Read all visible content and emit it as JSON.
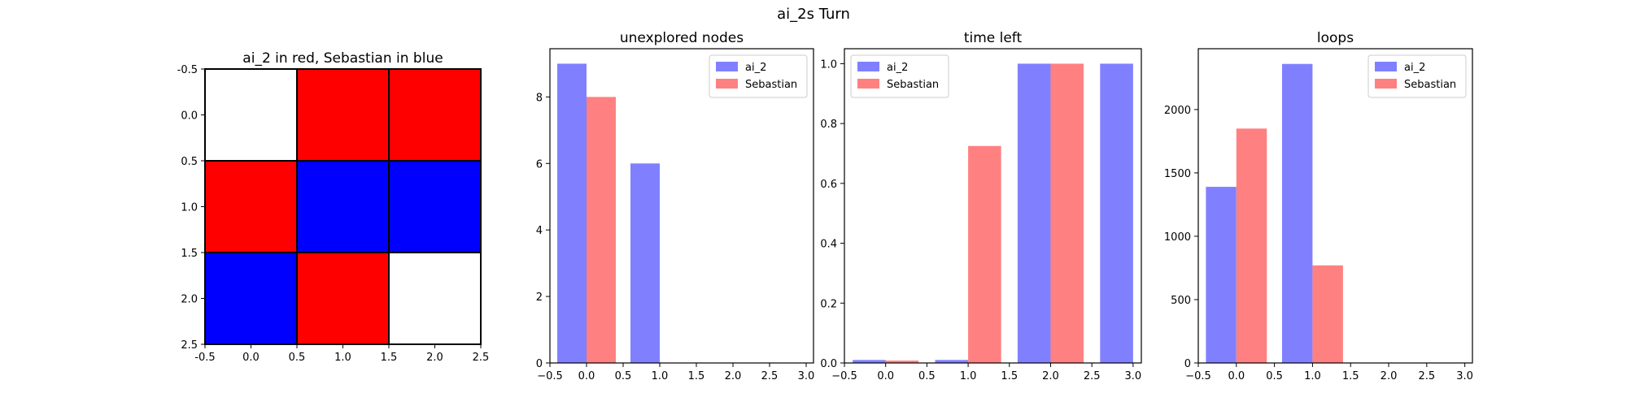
{
  "figure": {
    "suptitle": "ai_2s Turn"
  },
  "board": {
    "title": "ai_2 in red, Sebastian in blue",
    "colors": {
      "red": "#ff0000",
      "blue": "#0000ff",
      "empty": "#ffffff"
    },
    "cells": [
      [
        "empty",
        "red",
        "red"
      ],
      [
        "red",
        "blue",
        "blue"
      ],
      [
        "blue",
        "red",
        "empty"
      ]
    ],
    "x_ticks": [
      "-0.5",
      "0.0",
      "0.5",
      "1.0",
      "1.5",
      "2.0",
      "2.5"
    ],
    "y_ticks": [
      "-0.5",
      "0.0",
      "0.5",
      "1.0",
      "1.5",
      "2.0",
      "2.5"
    ]
  },
  "chart_data": [
    {
      "type": "bar",
      "title": "unexplored nodes",
      "xlim": [
        -0.5,
        3.1
      ],
      "ylim": [
        0,
        9.45
      ],
      "x_ticks": [
        -0.5,
        0.0,
        0.5,
        1.0,
        1.5,
        2.0,
        2.5,
        3.0
      ],
      "x_tick_labels": [
        "−0.5",
        "0.0",
        "0.5",
        "1.0",
        "1.5",
        "2.0",
        "2.5",
        "3.0"
      ],
      "y_ticks": [
        0,
        2,
        4,
        6,
        8
      ],
      "y_tick_labels": [
        "0",
        "2",
        "4",
        "6",
        "8"
      ],
      "legend_position": "top-right",
      "series": [
        {
          "name": "ai_2",
          "color": "#8080ff",
          "x": [
            0,
            1
          ],
          "values": [
            9,
            6
          ]
        },
        {
          "name": "Sebastian",
          "color": "#ff8080",
          "x": [
            0
          ],
          "values": [
            8
          ]
        }
      ]
    },
    {
      "type": "bar",
      "title": "time left",
      "xlim": [
        -0.5,
        3.1
      ],
      "ylim": [
        0,
        1.05
      ],
      "x_ticks": [
        -0.5,
        0.0,
        0.5,
        1.0,
        1.5,
        2.0,
        2.5,
        3.0
      ],
      "x_tick_labels": [
        "−0.5",
        "0.0",
        "0.5",
        "1.0",
        "1.5",
        "2.0",
        "2.5",
        "3.0"
      ],
      "y_ticks": [
        0.0,
        0.2,
        0.4,
        0.6,
        0.8,
        1.0
      ],
      "y_tick_labels": [
        "0.0",
        "0.2",
        "0.4",
        "0.6",
        "0.8",
        "1.0"
      ],
      "legend_position": "top-left",
      "series": [
        {
          "name": "ai_2",
          "color": "#8080ff",
          "x": [
            0,
            1,
            2,
            3
          ],
          "values": [
            0.01,
            0.01,
            1.0,
            1.0
          ]
        },
        {
          "name": "Sebastian",
          "color": "#ff8080",
          "x": [
            0,
            1,
            2
          ],
          "values": [
            0.008,
            0.725,
            1.0
          ]
        }
      ]
    },
    {
      "type": "bar",
      "title": "loops",
      "xlim": [
        -0.5,
        3.1
      ],
      "ylim": [
        0,
        2480
      ],
      "x_ticks": [
        -0.5,
        0.0,
        0.5,
        1.0,
        1.5,
        2.0,
        2.5,
        3.0
      ],
      "x_tick_labels": [
        "−0.5",
        "0.0",
        "0.5",
        "1.0",
        "1.5",
        "2.0",
        "2.5",
        "3.0"
      ],
      "y_ticks": [
        0,
        500,
        1000,
        1500,
        2000
      ],
      "y_tick_labels": [
        "0",
        "500",
        "1000",
        "1500",
        "2000"
      ],
      "legend_position": "top-right",
      "series": [
        {
          "name": "ai_2",
          "color": "#8080ff",
          "x": [
            0,
            1
          ],
          "values": [
            1390,
            2360
          ]
        },
        {
          "name": "Sebastian",
          "color": "#ff8080",
          "x": [
            0,
            1
          ],
          "values": [
            1850,
            770
          ]
        }
      ]
    }
  ]
}
